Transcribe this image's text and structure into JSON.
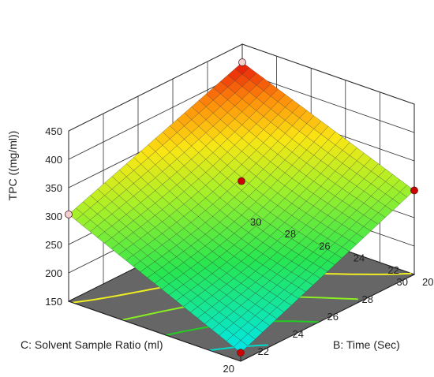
{
  "chart_data": {
    "type": "surface3d",
    "zlabel": "TPC ((mg/ml))",
    "xlabel": "C: Solvent Sample Ratio (ml)",
    "ylabel": "B: Time (Sec)",
    "z_ticks": [
      "150",
      "200",
      "250",
      "300",
      "350",
      "400",
      "450"
    ],
    "x_ticks": [
      "20",
      "22",
      "24",
      "26",
      "28",
      "30"
    ],
    "y_ticks": [
      "20",
      "22",
      "24",
      "26",
      "28",
      "30"
    ],
    "zlim": [
      150,
      450
    ],
    "xlim": [
      20,
      30
    ],
    "ylim": [
      20,
      30
    ],
    "surface_corners": [
      {
        "C": 20,
        "B": 20,
        "TPC": 165
      },
      {
        "C": 30,
        "B": 20,
        "TPC": 298
      },
      {
        "C": 20,
        "B": 30,
        "TPC": 303
      },
      {
        "C": 30,
        "B": 30,
        "TPC": 418
      }
    ],
    "design_points": [
      {
        "C": 20,
        "B": 20,
        "TPC": 165,
        "color": "#cc0000"
      },
      {
        "C": 30,
        "B": 20,
        "TPC": 298,
        "color": "#cc0000"
      },
      {
        "C": 25,
        "B": 25,
        "TPC": 338,
        "color": "#cc0000"
      },
      {
        "C": 30,
        "B": 30,
        "TPC": 418,
        "color": "#f4d0d0"
      },
      {
        "C": 20,
        "B": 30,
        "TPC": 303,
        "color": "#f4d0d0"
      }
    ],
    "contour_colors": [
      "#00d8c8",
      "#22cc22",
      "#88ee22",
      "#eeee22",
      "#ff9922"
    ],
    "floor_color": "#666666"
  }
}
